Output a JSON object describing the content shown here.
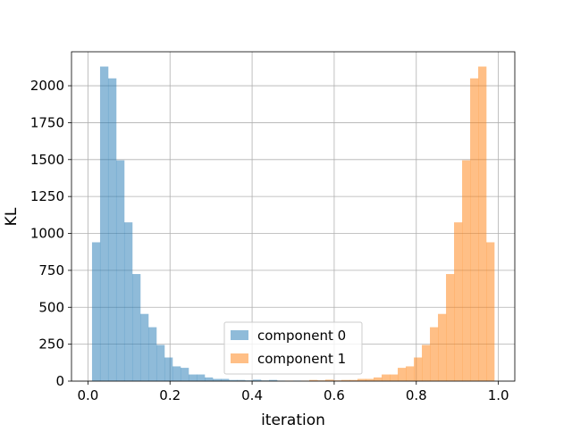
{
  "chart_data": {
    "type": "bar",
    "title": "",
    "xlabel": "iteration",
    "ylabel": "KL",
    "xlim": [
      -0.04,
      1.04
    ],
    "ylim": [
      0,
      2230
    ],
    "xticks": [
      "0.0",
      "0.2",
      "0.4",
      "0.6",
      "0.8",
      "1.0"
    ],
    "xtick_values": [
      0.0,
      0.2,
      0.4,
      0.6,
      0.8,
      1.0
    ],
    "yticks": [
      "0",
      "250",
      "500",
      "750",
      "1000",
      "1250",
      "1500",
      "1750",
      "2000"
    ],
    "ytick_values": [
      0,
      250,
      500,
      750,
      1000,
      1250,
      1500,
      1750,
      2000
    ],
    "grid": true,
    "legend_position": "lower center",
    "bin_edges": [
      0.01,
      0.0296,
      0.0492,
      0.0688,
      0.0884,
      0.108,
      0.1276,
      0.1472,
      0.1668,
      0.1864,
      0.206,
      0.2256,
      0.2452,
      0.2648,
      0.2844,
      0.304,
      0.3236,
      0.3432,
      0.3628,
      0.3824,
      0.402,
      0.4216,
      0.4412,
      0.4608,
      0.4804,
      0.5,
      0.5196,
      0.5392,
      0.5588,
      0.5784,
      0.598,
      0.6176,
      0.6372,
      0.6568,
      0.6764,
      0.696,
      0.7156,
      0.7352,
      0.7548,
      0.7744,
      0.794,
      0.8136,
      0.8332,
      0.8528,
      0.8724,
      0.892,
      0.9116,
      0.9312,
      0.9508,
      0.9704,
      0.99
    ],
    "series": [
      {
        "name": "component 0",
        "color": "#1f77b4",
        "alpha": 0.5,
        "values": [
          940,
          2130,
          2050,
          1495,
          1075,
          725,
          455,
          365,
          245,
          160,
          100,
          90,
          45,
          45,
          25,
          15,
          15,
          8,
          8,
          5,
          10,
          5,
          8,
          3,
          0,
          3,
          0,
          0,
          2,
          0,
          0,
          2,
          0,
          0,
          0,
          0,
          0,
          0,
          0,
          0,
          0,
          0,
          0,
          0,
          0,
          0,
          0,
          0,
          0,
          0
        ]
      },
      {
        "name": "component 1",
        "color": "#ff7f0e",
        "alpha": 0.5,
        "values": [
          0,
          0,
          0,
          0,
          0,
          0,
          0,
          0,
          0,
          0,
          0,
          0,
          0,
          0,
          0,
          0,
          0,
          0,
          2,
          0,
          0,
          2,
          0,
          0,
          3,
          0,
          3,
          8,
          5,
          10,
          5,
          8,
          8,
          15,
          15,
          25,
          45,
          45,
          90,
          100,
          160,
          245,
          365,
          455,
          725,
          1075,
          1495,
          2050,
          2130,
          940
        ]
      }
    ]
  }
}
